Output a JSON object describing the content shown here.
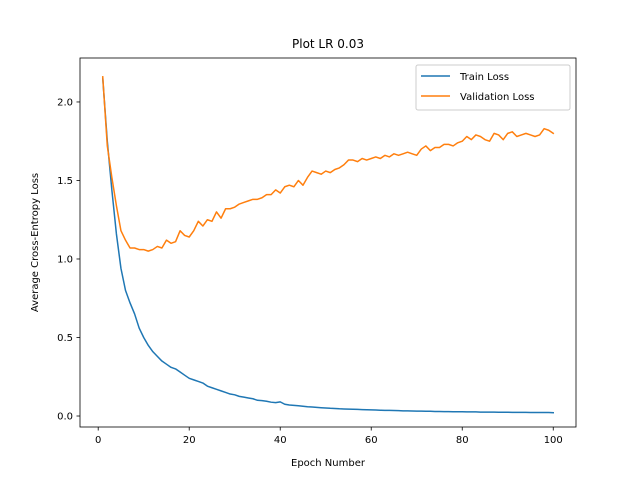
{
  "chart_data": {
    "type": "line",
    "title": "Plot LR 0.03",
    "xlabel": "Epoch Number",
    "ylabel": "Average Cross-Entropy Loss",
    "xlim": [
      -4,
      105
    ],
    "ylim": [
      -0.07,
      2.28
    ],
    "xticks": [
      0,
      20,
      40,
      60,
      80,
      100
    ],
    "yticks": [
      0.0,
      0.5,
      1.0,
      1.5,
      2.0
    ],
    "xtick_labels": [
      "0",
      "20",
      "40",
      "60",
      "80",
      "100"
    ],
    "ytick_labels": [
      "0.0",
      "0.5",
      "1.0",
      "1.5",
      "2.0"
    ],
    "grid": false,
    "legend_position": "top-right",
    "x": [
      1,
      2,
      3,
      4,
      5,
      6,
      7,
      8,
      9,
      10,
      11,
      12,
      13,
      14,
      15,
      16,
      17,
      18,
      19,
      20,
      21,
      22,
      23,
      24,
      25,
      26,
      27,
      28,
      29,
      30,
      31,
      32,
      33,
      34,
      35,
      36,
      37,
      38,
      39,
      40,
      41,
      42,
      43,
      44,
      45,
      46,
      47,
      48,
      49,
      50,
      51,
      52,
      53,
      54,
      55,
      56,
      57,
      58,
      59,
      60,
      61,
      62,
      63,
      64,
      65,
      66,
      67,
      68,
      69,
      70,
      71,
      72,
      73,
      74,
      75,
      76,
      77,
      78,
      79,
      80,
      81,
      82,
      83,
      84,
      85,
      86,
      87,
      88,
      89,
      90,
      91,
      92,
      93,
      94,
      95,
      96,
      97,
      98,
      99,
      100
    ],
    "series": [
      {
        "name": "Train Loss",
        "color": "#1f77b4",
        "values": [
          2.15,
          1.75,
          1.44,
          1.16,
          0.94,
          0.8,
          0.72,
          0.65,
          0.56,
          0.5,
          0.45,
          0.41,
          0.38,
          0.35,
          0.33,
          0.31,
          0.3,
          0.28,
          0.26,
          0.24,
          0.23,
          0.22,
          0.21,
          0.19,
          0.18,
          0.17,
          0.16,
          0.15,
          0.14,
          0.135,
          0.125,
          0.12,
          0.115,
          0.11,
          0.1,
          0.098,
          0.094,
          0.088,
          0.085,
          0.09,
          0.075,
          0.07,
          0.068,
          0.065,
          0.062,
          0.059,
          0.057,
          0.055,
          0.053,
          0.051,
          0.049,
          0.048,
          0.046,
          0.045,
          0.044,
          0.043,
          0.042,
          0.041,
          0.04,
          0.039,
          0.038,
          0.037,
          0.036,
          0.036,
          0.035,
          0.034,
          0.033,
          0.033,
          0.032,
          0.031,
          0.031,
          0.03,
          0.03,
          0.029,
          0.029,
          0.028,
          0.028,
          0.027,
          0.027,
          0.027,
          0.026,
          0.026,
          0.026,
          0.025,
          0.025,
          0.025,
          0.025,
          0.024,
          0.024,
          0.024,
          0.023,
          0.023,
          0.023,
          0.023,
          0.022,
          0.022,
          0.022,
          0.022,
          0.022,
          0.021
        ]
      },
      {
        "name": "Validation Loss",
        "color": "#ff7f0e",
        "values": [
          2.16,
          1.72,
          1.52,
          1.34,
          1.18,
          1.12,
          1.07,
          1.07,
          1.06,
          1.06,
          1.05,
          1.06,
          1.08,
          1.07,
          1.12,
          1.1,
          1.11,
          1.18,
          1.15,
          1.14,
          1.18,
          1.24,
          1.21,
          1.25,
          1.24,
          1.3,
          1.26,
          1.32,
          1.32,
          1.33,
          1.35,
          1.36,
          1.37,
          1.38,
          1.38,
          1.39,
          1.41,
          1.41,
          1.44,
          1.42,
          1.46,
          1.47,
          1.46,
          1.5,
          1.47,
          1.52,
          1.56,
          1.55,
          1.54,
          1.56,
          1.55,
          1.57,
          1.58,
          1.6,
          1.63,
          1.63,
          1.62,
          1.64,
          1.63,
          1.64,
          1.65,
          1.64,
          1.66,
          1.65,
          1.67,
          1.66,
          1.67,
          1.68,
          1.67,
          1.66,
          1.7,
          1.72,
          1.69,
          1.71,
          1.71,
          1.73,
          1.73,
          1.72,
          1.74,
          1.75,
          1.78,
          1.76,
          1.79,
          1.78,
          1.76,
          1.75,
          1.8,
          1.79,
          1.76,
          1.8,
          1.81,
          1.78,
          1.79,
          1.8,
          1.79,
          1.78,
          1.79,
          1.83,
          1.82,
          1.8
        ]
      }
    ]
  }
}
